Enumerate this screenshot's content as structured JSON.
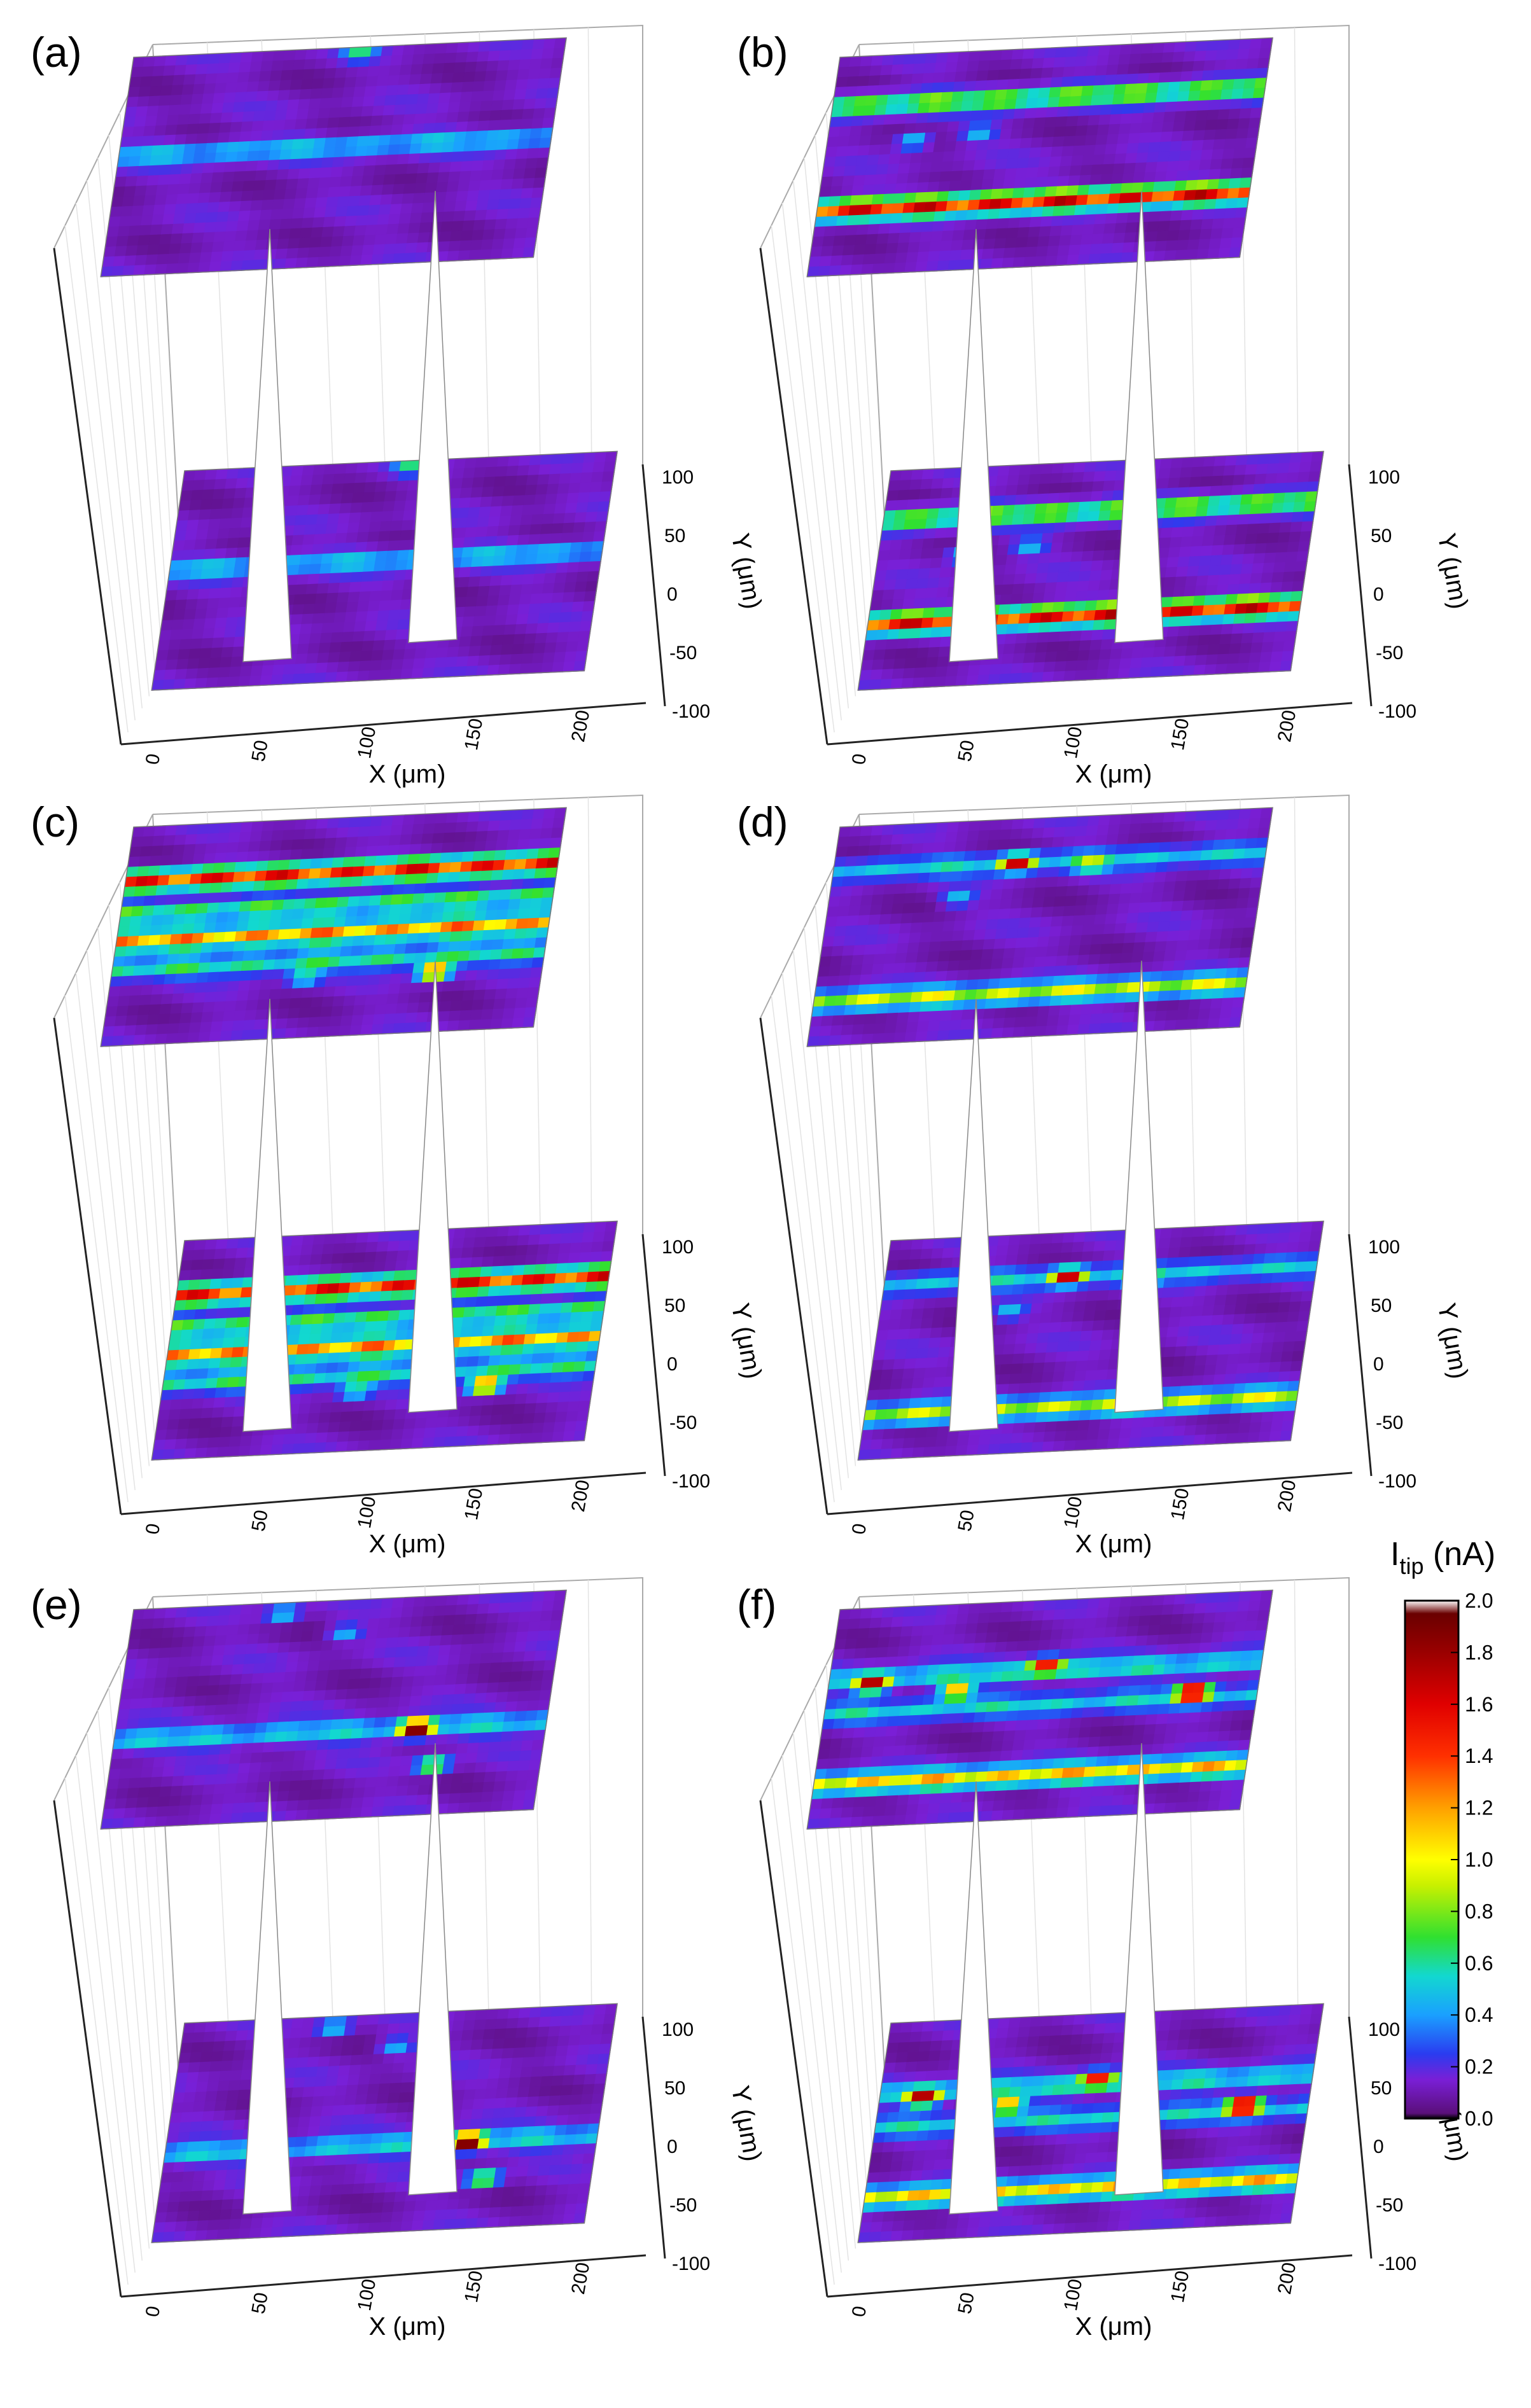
{
  "figure": {
    "colorbar": {
      "title_main": "I",
      "title_sub": "tip",
      "title_unit": " (nA)",
      "ticks": [
        "2.0",
        "1.8",
        "1.6",
        "1.4",
        "1.2",
        "1.0",
        "0.8",
        "0.6",
        "0.4",
        "0.2",
        "0.0"
      ],
      "min": 0.0,
      "max": 2.0,
      "stops": [
        {
          "v": 0.0,
          "color": "#000000"
        },
        {
          "v": 0.02,
          "color": "#5a0f7a"
        },
        {
          "v": 0.15,
          "color": "#7a1fd6"
        },
        {
          "v": 0.25,
          "color": "#2a3cf0"
        },
        {
          "v": 0.4,
          "color": "#1aa0ff"
        },
        {
          "v": 0.55,
          "color": "#12d8d0"
        },
        {
          "v": 0.7,
          "color": "#30e030"
        },
        {
          "v": 0.9,
          "color": "#c8f000"
        },
        {
          "v": 1.0,
          "color": "#ffff00"
        },
        {
          "v": 1.2,
          "color": "#ffa000"
        },
        {
          "v": 1.4,
          "color": "#ff3000"
        },
        {
          "v": 1.6,
          "color": "#e00000"
        },
        {
          "v": 1.8,
          "color": "#9a0000"
        },
        {
          "v": 1.95,
          "color": "#6a0000"
        },
        {
          "v": 2.0,
          "color": "#ffffff"
        }
      ]
    }
  },
  "chart_data": [
    {
      "panel": "(a)",
      "type": "heatmap",
      "xlabel": "X (μm)",
      "ylabel": "Y (μm)",
      "x_ticks": [
        "0",
        "50",
        "100",
        "150",
        "200"
      ],
      "y_ticks": [
        "100",
        "50",
        "0",
        "-50",
        "-100"
      ],
      "xlim": [
        0,
        200
      ],
      "ylim": [
        -100,
        100
      ],
      "clim": [
        0.0,
        2.0
      ],
      "bands": [
        {
          "y": 10,
          "value": 0.42
        }
      ],
      "spots": [
        [
          105,
          95,
          0.5
        ]
      ]
    },
    {
      "panel": "(b)",
      "type": "heatmap",
      "xlabel": "X (μm)",
      "ylabel": "Y (μm)",
      "x_ticks": [
        "0",
        "50",
        "100",
        "150",
        "200"
      ],
      "y_ticks": [
        "100",
        "50",
        "0",
        "-50",
        "-100"
      ],
      "xlim": [
        0,
        200
      ],
      "ylim": [
        -100,
        100
      ],
      "clim": [
        0.0,
        2.0
      ],
      "bands": [
        {
          "y": 55,
          "value": 0.8
        },
        {
          "y": -40,
          "value": 1.6
        }
      ],
      "spots": [
        [
          40,
          20,
          0.5
        ],
        [
          70,
          25,
          0.4
        ]
      ]
    },
    {
      "panel": "(c)",
      "type": "heatmap",
      "xlabel": "X (μm)",
      "ylabel": "Y (μm)",
      "x_ticks": [
        "0",
        "50",
        "100",
        "150",
        "200"
      ],
      "y_ticks": [
        "100",
        "50",
        "0",
        "-50",
        "-100"
      ],
      "xlim": [
        0,
        200
      ],
      "ylim": [
        -100,
        100
      ],
      "clim": [
        0.0,
        2.0
      ],
      "bands": [
        {
          "y": 50,
          "value": 1.5
        },
        {
          "y": 20,
          "value": 0.7
        },
        {
          "y": -5,
          "value": 1.2
        },
        {
          "y": -30,
          "value": 0.6
        }
      ],
      "spots": [
        [
          150,
          -45,
          1.4
        ],
        [
          90,
          -45,
          0.5
        ]
      ]
    },
    {
      "panel": "(d)",
      "type": "heatmap",
      "xlabel": "X (μm)",
      "ylabel": "Y (μm)",
      "x_ticks": [
        "0",
        "50",
        "100",
        "150",
        "200"
      ],
      "y_ticks": [
        "100",
        "50",
        "0",
        "-50",
        "-100"
      ],
      "xlim": [
        0,
        200
      ],
      "ylim": [
        -100,
        100
      ],
      "clim": [
        0.0,
        2.0
      ],
      "bands": [
        {
          "y": 60,
          "value": 0.45
        },
        {
          "y": -60,
          "value": 0.9
        }
      ],
      "spots": [
        [
          85,
          60,
          1.3
        ],
        [
          120,
          55,
          0.5
        ],
        [
          60,
          30,
          0.4
        ]
      ]
    },
    {
      "panel": "(e)",
      "type": "heatmap",
      "xlabel": "X (μm)",
      "ylabel": "Y (μm)",
      "x_ticks": [
        "0",
        "50",
        "100",
        "150",
        "200"
      ],
      "y_ticks": [
        "100",
        "50",
        "0",
        "-50",
        "-100"
      ],
      "xlim": [
        0,
        200
      ],
      "ylim": [
        -100,
        100
      ],
      "clim": [
        0.0,
        2.0
      ],
      "bands": [
        {
          "y": -20,
          "value": 0.5
        }
      ],
      "spots": [
        [
          140,
          -20,
          1.8
        ],
        [
          150,
          -55,
          0.9
        ],
        [
          100,
          70,
          0.4
        ],
        [
          70,
          90,
          0.5
        ]
      ]
    },
    {
      "panel": "(f)",
      "type": "heatmap",
      "xlabel": "X (μm)",
      "ylabel": "Y (μm)",
      "x_ticks": [
        "0",
        "50",
        "100",
        "150",
        "200"
      ],
      "y_ticks": [
        "100",
        "50",
        "0",
        "-50",
        "-100"
      ],
      "xlim": [
        0,
        200
      ],
      "ylim": [
        -100,
        100
      ],
      "clim": [
        0.0,
        2.0
      ],
      "bands": [
        {
          "y": 35,
          "value": 0.55
        },
        {
          "y": 5,
          "value": 0.45
        },
        {
          "y": -60,
          "value": 1.1
        }
      ],
      "spots": [
        [
          20,
          30,
          1.4
        ],
        [
          100,
          40,
          1.3
        ],
        [
          170,
          10,
          1.8
        ],
        [
          60,
          20,
          1.2
        ]
      ]
    }
  ]
}
